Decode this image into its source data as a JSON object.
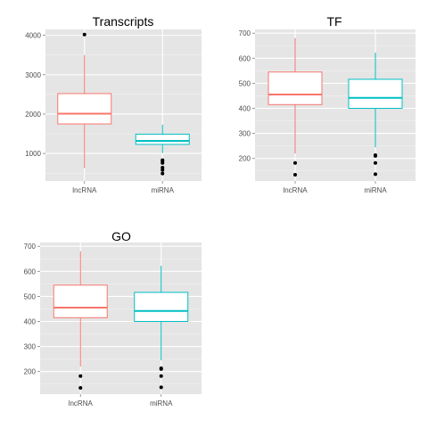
{
  "colors": {
    "panel_bg": "#e5e5e5",
    "grid_major": "#ffffff",
    "grid_minor": "#f2f2f2",
    "lncRNA": "#f8766d",
    "miRNA": "#00bfc4",
    "outlier": "#000000"
  },
  "chart_data": [
    {
      "type": "boxplot",
      "title": "Transcripts",
      "categories": [
        "lncRNA",
        "miRNA"
      ],
      "yticks": [
        1000,
        2000,
        3000,
        4000
      ],
      "ylim": [
        300,
        4150
      ],
      "boxes": [
        {
          "name": "lncRNA",
          "whisker_low": 630,
          "q1": 1750,
          "median": 2010,
          "q3": 2520,
          "whisker_high": 3500,
          "outliers": [
            4020
          ]
        },
        {
          "name": "miRNA",
          "whisker_low": 1010,
          "q1": 1230,
          "median": 1320,
          "q3": 1490,
          "whisker_high": 1730,
          "outliers": [
            490,
            580,
            640,
            760,
            800,
            830
          ]
        }
      ],
      "grid": true
    },
    {
      "type": "boxplot",
      "title": "TF",
      "categories": [
        "lncRNA",
        "miRNA"
      ],
      "yticks": [
        200,
        300,
        400,
        500,
        600,
        700
      ],
      "ylim": [
        110,
        715
      ],
      "boxes": [
        {
          "name": "lncRNA",
          "whisker_low": 220,
          "q1": 415,
          "median": 455,
          "q3": 545,
          "whisker_high": 680,
          "outliers": [
            135,
            182
          ]
        },
        {
          "name": "miRNA",
          "whisker_low": 245,
          "q1": 400,
          "median": 442,
          "q3": 516,
          "whisker_high": 622,
          "outliers": [
            137,
            182,
            210,
            213
          ]
        }
      ],
      "grid": true
    },
    {
      "type": "boxplot",
      "title": "GO",
      "categories": [
        "lncRNA",
        "miRNA"
      ],
      "yticks": [
        200,
        300,
        400,
        500,
        600,
        700
      ],
      "ylim": [
        110,
        715
      ],
      "boxes": [
        {
          "name": "lncRNA",
          "whisker_low": 220,
          "q1": 415,
          "median": 455,
          "q3": 545,
          "whisker_high": 680,
          "outliers": [
            135,
            182
          ]
        },
        {
          "name": "miRNA",
          "whisker_low": 245,
          "q1": 400,
          "median": 442,
          "q3": 516,
          "whisker_high": 622,
          "outliers": [
            137,
            182,
            210,
            213
          ]
        }
      ],
      "grid": true
    }
  ]
}
